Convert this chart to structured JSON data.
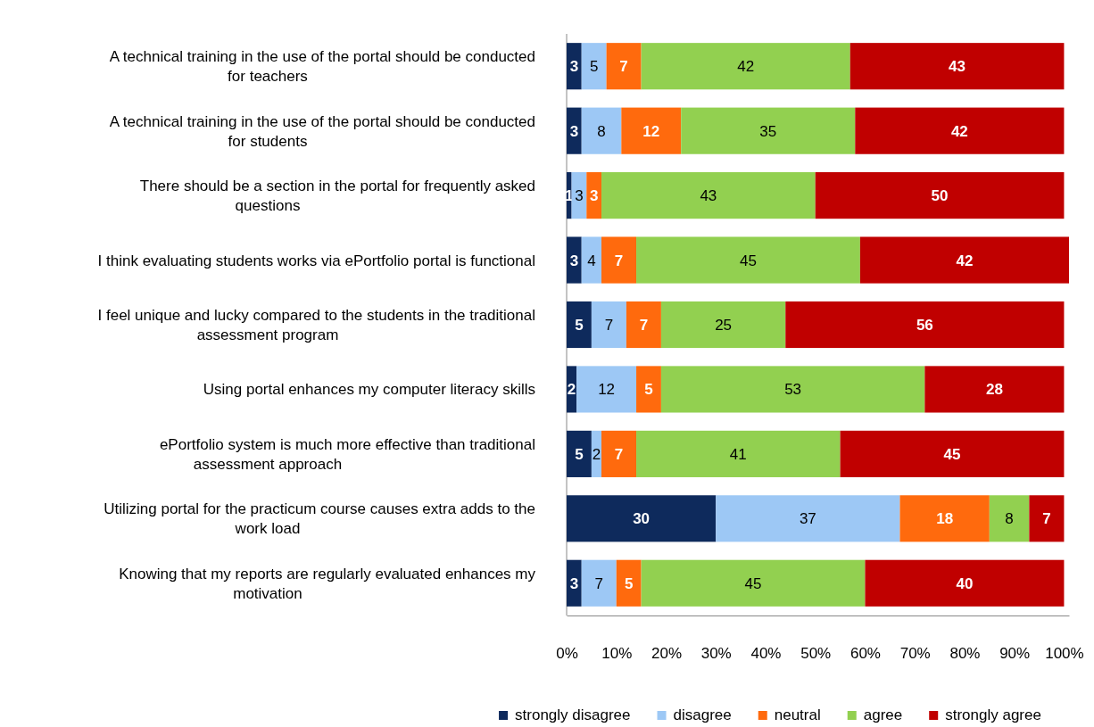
{
  "chart_data": {
    "type": "bar",
    "orientation": "horizontal",
    "stacked": true,
    "data_labels": true,
    "legend": "bottom",
    "grid": false,
    "categories": [
      "A technical training  in the use of the portal should be conducted for teachers",
      "A technical training  in the use of the portal should be conducted for students",
      "There should be a section in the portal for frequently asked questions",
      "I think evaluating students works via ePortfolio portal is functional",
      "I feel unique and lucky compared to the students in the traditional assessment program",
      "Using portal enhances my computer literacy skills",
      "ePortfolio system is much more effective than traditional assessment approach",
      "Utilizing portal for the practicum course causes extra adds to the work load",
      "Knowing that my reports are regularly evaluated enhances my motivation"
    ],
    "xlim": [
      0,
      101
    ],
    "xticks": [
      {
        "value": 0,
        "label": "0%"
      },
      {
        "value": 10,
        "label": "10%"
      },
      {
        "value": 20,
        "label": "20%"
      },
      {
        "value": 30,
        "label": "30%"
      },
      {
        "value": 40,
        "label": "40%"
      },
      {
        "value": 50,
        "label": "50%"
      },
      {
        "value": 60,
        "label": "60%"
      },
      {
        "value": 70,
        "label": "70%"
      },
      {
        "value": 80,
        "label": "80%"
      },
      {
        "value": 90,
        "label": "90%"
      },
      {
        "value": 100,
        "label": "100%"
      }
    ],
    "series": [
      {
        "name": "strongly disagree",
        "color": "#0e2a5c",
        "values": [
          3,
          3,
          1,
          3,
          5,
          2,
          5,
          30,
          3
        ]
      },
      {
        "name": "disagree",
        "color": "#9dc8f5",
        "values": [
          5,
          8,
          3,
          4,
          7,
          12,
          2,
          37,
          7
        ]
      },
      {
        "name": "neutral",
        "color": "#ff6a0d",
        "values": [
          7,
          12,
          3,
          7,
          7,
          5,
          7,
          18,
          5
        ]
      },
      {
        "name": "agree",
        "color": "#92d050",
        "values": [
          42,
          35,
          43,
          45,
          25,
          53,
          41,
          8,
          45
        ]
      },
      {
        "name": "strongly agree",
        "color": "#c00000",
        "values": [
          43,
          42,
          50,
          42,
          56,
          28,
          45,
          7,
          40
        ]
      }
    ]
  }
}
